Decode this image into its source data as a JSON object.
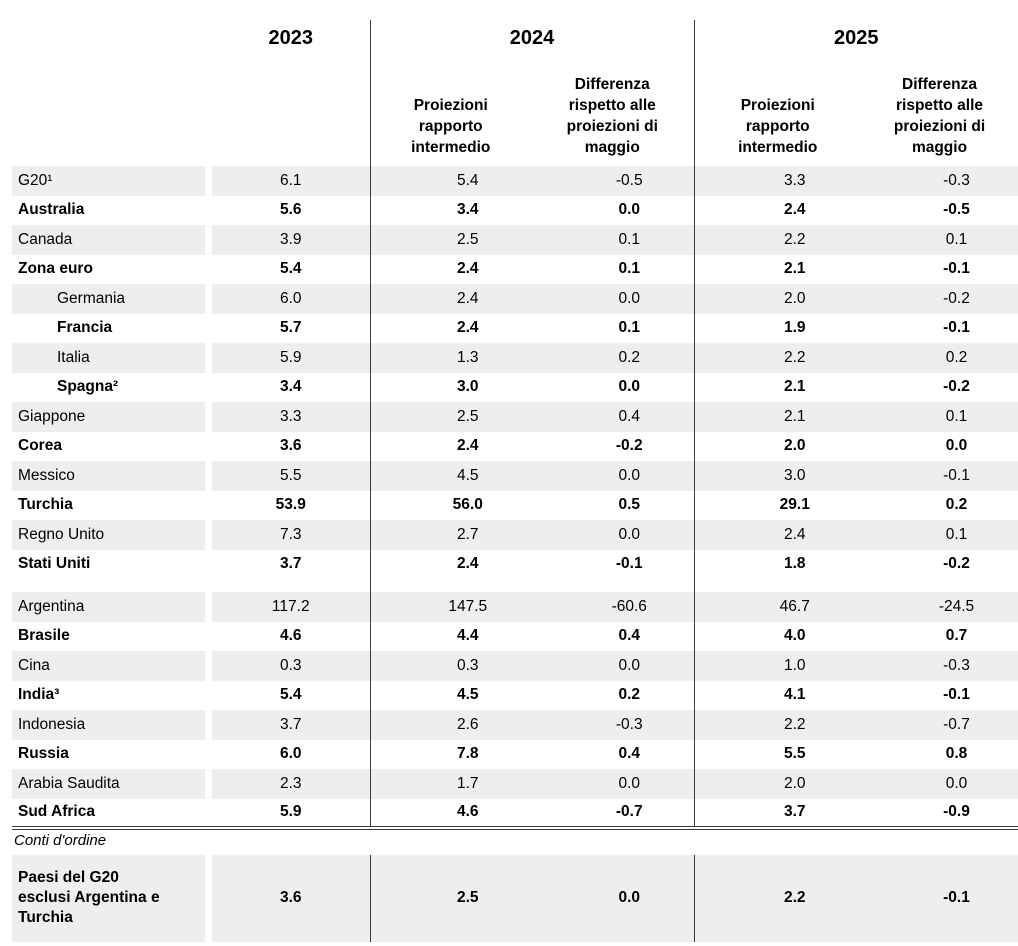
{
  "table": {
    "year_headers": [
      "2023",
      "2024",
      "2025"
    ],
    "subheaders": {
      "projections": "Proiezioni rapporto intermedio",
      "difference": "Differenza rispetto alle proiezioni di maggio"
    },
    "rows": [
      {
        "label": "G20¹",
        "indent": false,
        "bold": false,
        "values": [
          "6.1",
          "5.4",
          "-0.5",
          "3.3",
          "-0.3"
        ]
      },
      {
        "label": "Australia",
        "indent": false,
        "bold": true,
        "values": [
          "5.6",
          "3.4",
          "0.0",
          "2.4",
          "-0.5"
        ]
      },
      {
        "label": "Canada",
        "indent": false,
        "bold": false,
        "values": [
          "3.9",
          "2.5",
          "0.1",
          "2.2",
          "0.1"
        ]
      },
      {
        "label": "Zona euro",
        "indent": false,
        "bold": true,
        "values": [
          "5.4",
          "2.4",
          "0.1",
          "2.1",
          "-0.1"
        ]
      },
      {
        "label": "Germania",
        "indent": true,
        "bold": false,
        "values": [
          "6.0",
          "2.4",
          "0.0",
          "2.0",
          "-0.2"
        ]
      },
      {
        "label": "Francia",
        "indent": true,
        "bold": true,
        "values": [
          "5.7",
          "2.4",
          "0.1",
          "1.9",
          "-0.1"
        ]
      },
      {
        "label": "Italia",
        "indent": true,
        "bold": false,
        "values": [
          "5.9",
          "1.3",
          "0.2",
          "2.2",
          "0.2"
        ]
      },
      {
        "label": "Spagna²",
        "indent": true,
        "bold": true,
        "values": [
          "3.4",
          "3.0",
          "0.0",
          "2.1",
          "-0.2"
        ]
      },
      {
        "label": "Giappone",
        "indent": false,
        "bold": false,
        "values": [
          "3.3",
          "2.5",
          "0.4",
          "2.1",
          "0.1"
        ]
      },
      {
        "label": "Corea",
        "indent": false,
        "bold": true,
        "values": [
          "3.6",
          "2.4",
          "-0.2",
          "2.0",
          "0.0"
        ]
      },
      {
        "label": "Messico",
        "indent": false,
        "bold": false,
        "values": [
          "5.5",
          "4.5",
          "0.0",
          "3.0",
          "-0.1"
        ]
      },
      {
        "label": "Turchia",
        "indent": false,
        "bold": true,
        "values": [
          "53.9",
          "56.0",
          "0.5",
          "29.1",
          "0.2"
        ]
      },
      {
        "label": "Regno Unito",
        "indent": false,
        "bold": false,
        "values": [
          "7.3",
          "2.7",
          "0.0",
          "2.4",
          "0.1"
        ]
      },
      {
        "label": "Stati Uniti",
        "indent": false,
        "bold": true,
        "values": [
          "3.7",
          "2.4",
          "-0.1",
          "1.8",
          "-0.2"
        ]
      },
      {
        "label": "Argentina",
        "indent": false,
        "bold": false,
        "spacer_before": true,
        "values": [
          "117.2",
          "147.5",
          "-60.6",
          "46.7",
          "-24.5"
        ]
      },
      {
        "label": "Brasile",
        "indent": false,
        "bold": true,
        "values": [
          "4.6",
          "4.4",
          "0.4",
          "4.0",
          "0.7"
        ]
      },
      {
        "label": "Cina",
        "indent": false,
        "bold": false,
        "values": [
          "0.3",
          "0.3",
          "0.0",
          "1.0",
          "-0.3"
        ]
      },
      {
        "label": "India³",
        "indent": false,
        "bold": true,
        "values": [
          "5.4",
          "4.5",
          "0.2",
          "4.1",
          "-0.1"
        ]
      },
      {
        "label": "Indonesia",
        "indent": false,
        "bold": false,
        "values": [
          "3.7",
          "2.6",
          "-0.3",
          "2.2",
          "-0.7"
        ]
      },
      {
        "label": "Russia",
        "indent": false,
        "bold": true,
        "values": [
          "6.0",
          "7.8",
          "0.4",
          "5.5",
          "0.8"
        ]
      },
      {
        "label": "Arabia Saudita",
        "indent": false,
        "bold": false,
        "values": [
          "2.3",
          "1.7",
          "0.0",
          "2.0",
          "0.0"
        ]
      },
      {
        "label": "Sud Africa",
        "indent": false,
        "bold": true,
        "values": [
          "5.9",
          "4.6",
          "-0.7",
          "3.7",
          "-0.9"
        ]
      }
    ],
    "section_label": "Conti d'ordine",
    "memo_row": {
      "label": "Paesi del G20 esclusi Argentina e Turchia",
      "values": [
        "3.6",
        "2.5",
        "0.0",
        "2.2",
        "-0.1"
      ]
    },
    "colors": {
      "stripe": "#eeeeee",
      "separator_line": "#3c3c3c",
      "text": "#000000"
    }
  }
}
